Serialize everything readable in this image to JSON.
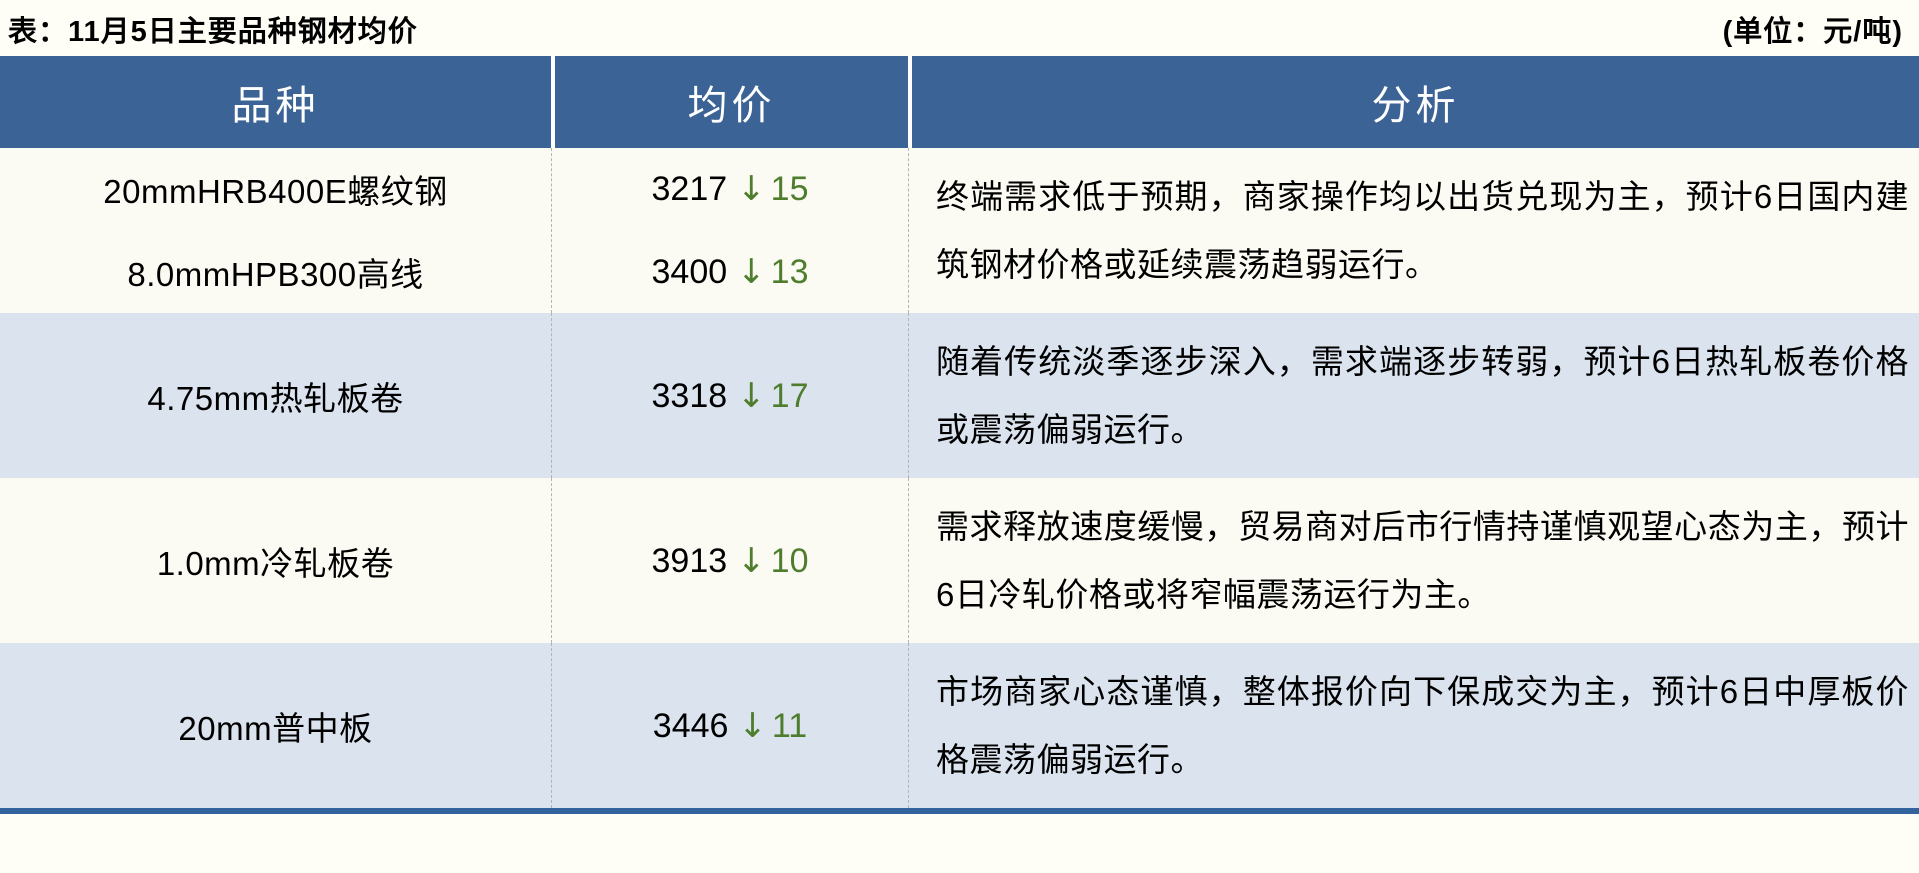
{
  "header": {
    "title": "表：11月5日主要品种钢材均价",
    "unit": "(单位：元/吨)"
  },
  "table": {
    "arrow_icon": "↓",
    "columns": [
      "品种",
      "均价",
      "分析"
    ],
    "rows": [
      {
        "items": [
          {
            "name": "20mmHRB400E螺纹钢",
            "price": "3217",
            "change": "15"
          },
          {
            "name": "8.0mmHPB300高线",
            "price": "3400",
            "change": "13"
          }
        ],
        "analysis": "终端需求低于预期，商家操作均以出货兑现为主，预计6日国内建筑钢材价格或延续震荡趋弱运行。"
      },
      {
        "items": [
          {
            "name": "4.75mm热轧板卷",
            "price": "3318",
            "change": "17"
          }
        ],
        "analysis": "随着传统淡季逐步深入，需求端逐步转弱，预计6日热轧板卷价格或震荡偏弱运行。"
      },
      {
        "items": [
          {
            "name": "1.0mm冷轧板卷",
            "price": "3913",
            "change": "10"
          }
        ],
        "analysis": "需求释放速度缓慢，贸易商对后市行情持谨慎观望心态为主，预计6日冷轧价格或将窄幅震荡运行为主。"
      },
      {
        "items": [
          {
            "name": "20mm普中板",
            "price": "3446",
            "change": "11"
          }
        ],
        "analysis": "市场商家心态谨慎，整体报价向下保成交为主，预计6日中厚板价格震荡偏弱运行。"
      }
    ]
  },
  "colors": {
    "header_bg": "#3c6395",
    "header_text": "#ffffff",
    "row_cream_bg": "#fcfbf3",
    "row_blue_bg": "#dbe4ee",
    "change_green": "#4e7d2e",
    "bottom_rule_blue": "#33639c",
    "page_bg": "#fffef6",
    "divider_dashed_gray": "#b3b3b3"
  }
}
